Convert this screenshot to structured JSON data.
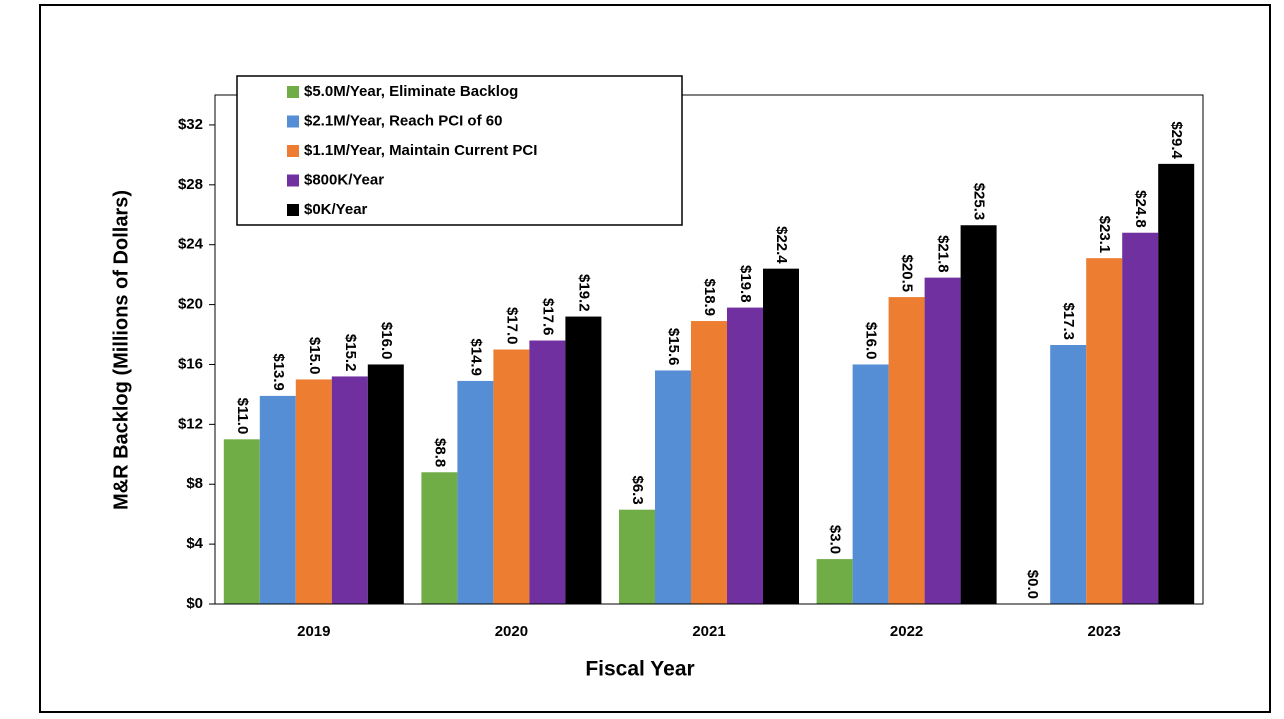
{
  "chart_data": {
    "type": "bar",
    "x_label": "Fiscal Year",
    "y_label": "M&R Backlog (Millions of Dollars)",
    "categories": [
      "2019",
      "2020",
      "2021",
      "2022",
      "2023"
    ],
    "series": [
      {
        "name": "$5.0M/Year, Eliminate Backlog",
        "color": "#70ad47",
        "values": [
          11.0,
          8.8,
          6.3,
          3.0,
          0.0
        ],
        "value_labels": [
          "$11.0",
          "$8.8",
          "$6.3",
          "$3.0",
          "$0.0"
        ]
      },
      {
        "name": "$2.1M/Year, Reach PCI of 60",
        "color": "#558ed5",
        "values": [
          13.9,
          14.9,
          15.6,
          16.0,
          17.3
        ],
        "value_labels": [
          "$13.9",
          "$14.9",
          "$15.6",
          "$16.0",
          "$17.3"
        ]
      },
      {
        "name": "$1.1M/Year, Maintain Current PCI",
        "color": "#ed7d31",
        "values": [
          15.0,
          17.0,
          18.9,
          20.5,
          23.1
        ],
        "value_labels": [
          "$15.0",
          "$17.0",
          "$18.9",
          "$20.5",
          "$23.1"
        ]
      },
      {
        "name": "$800K/Year",
        "color": "#7030a0",
        "values": [
          15.2,
          17.6,
          19.8,
          21.8,
          24.8
        ],
        "value_labels": [
          "$15.2",
          "$17.6",
          "$19.8",
          "$21.8",
          "$24.8"
        ]
      },
      {
        "name": "$0K/Year",
        "color": "#000000",
        "values": [
          16.0,
          19.2,
          22.4,
          25.3,
          29.4
        ],
        "value_labels": [
          "$16.0",
          "$19.2",
          "$22.4",
          "$25.3",
          "$29.4"
        ]
      }
    ],
    "ylim": [
      0,
      34
    ],
    "yticks": [
      {
        "value": 0,
        "label": "$0"
      },
      {
        "value": 4,
        "label": "$4"
      },
      {
        "value": 8,
        "label": "$8"
      },
      {
        "value": 12,
        "label": "$12"
      },
      {
        "value": 16,
        "label": "$16"
      },
      {
        "value": 20,
        "label": "$20"
      },
      {
        "value": 24,
        "label": "$24"
      },
      {
        "value": 28,
        "label": "$28"
      },
      {
        "value": 32,
        "label": "$32"
      }
    ],
    "grid": false,
    "legend": "upper left"
  }
}
